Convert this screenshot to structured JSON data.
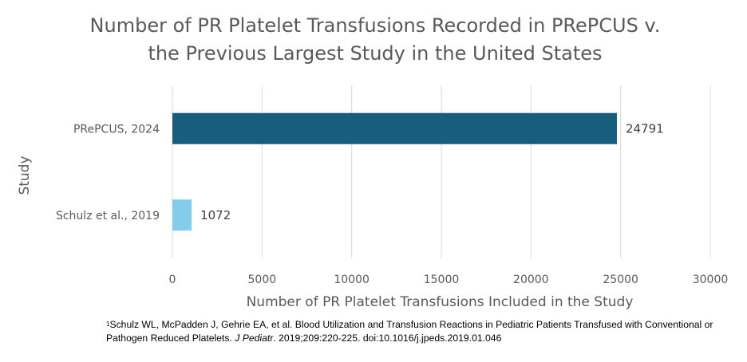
{
  "chart_data": {
    "type": "bar",
    "orientation": "horizontal",
    "title_lines": [
      "Number of PR Platelet Transfusions Recorded in PRePCUS v.",
      "the Previous Largest Study in the United States"
    ],
    "categories": [
      "PRePCUS, 2024",
      "Schulz et al., 2019"
    ],
    "values": [
      24791,
      1072
    ],
    "data_labels": [
      "24791",
      "1072"
    ],
    "colors": [
      "#175E7E",
      "#83CCEB"
    ],
    "xlabel": "Number of PR Platelet Transfusions Included in the Study",
    "ylabel": "Study",
    "xlim": [
      0,
      30000
    ],
    "xticks": [
      "0",
      "5000",
      "10000",
      "15000",
      "20000",
      "25000",
      "30000"
    ],
    "grid": "vertical",
    "legend": "none"
  },
  "footnote": {
    "marker": "1",
    "text_before": "Schulz WL, McPadden J, Gehrie EA, et al. Blood Utilization and Transfusion Reactions in Pediatric Patients Transfused with Conventional or Pathogen Reduced Platelets. ",
    "journal": "J Pediatr",
    "text_after": ". 2019;209:220-225. doi:10.1016/j.jpeds.2019.01.046"
  }
}
